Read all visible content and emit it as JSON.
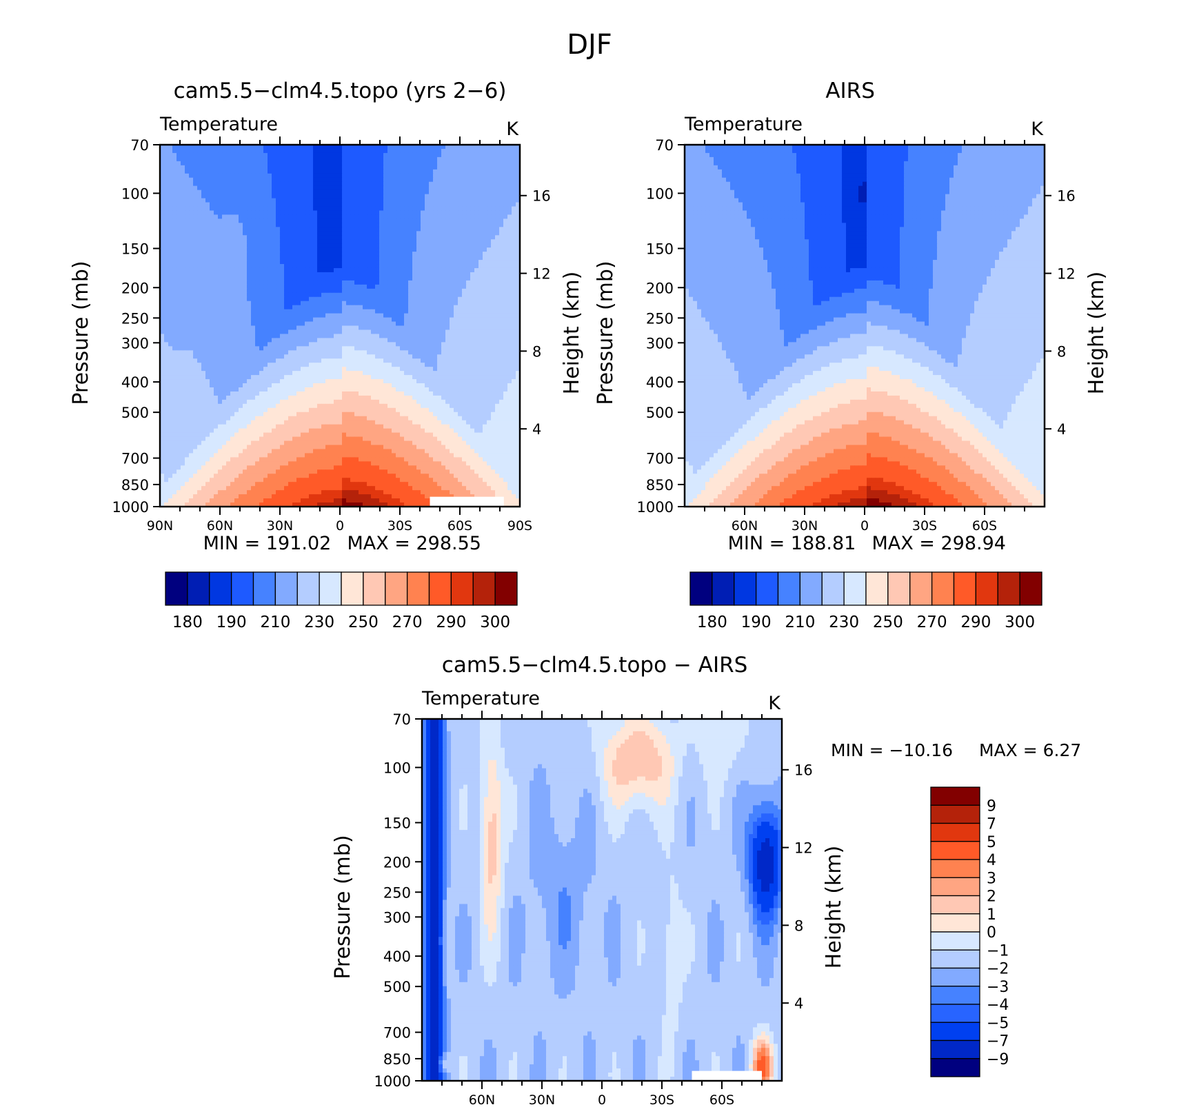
{
  "figure_title": "DJF",
  "colors": {
    "seq": [
      "#00007f",
      "#001eb4",
      "#0037e1",
      "#1e5aff",
      "#4682ff",
      "#82aaff",
      "#b4cdff",
      "#d7e8ff",
      "#ffe6d7",
      "#ffc8b4",
      "#ffa582",
      "#ff8250",
      "#ff5a28",
      "#e1370f",
      "#b4220a",
      "#820000"
    ],
    "diff": [
      "#00007f",
      "#0028c8",
      "#0040f0",
      "#2864ff",
      "#4682ff",
      "#82aaff",
      "#b4cdff",
      "#d7e8ff",
      "#ffe6d7",
      "#ffc8b4",
      "#ffa582",
      "#ff8250",
      "#ff5a28",
      "#e1370f",
      "#b4220a",
      "#820000"
    ]
  },
  "chart_data": [
    {
      "type": "heatmap",
      "title": "cam5.5−clm4.5.topo (yrs 2−6)",
      "variable": "Temperature",
      "units": "K",
      "ylabel": "Pressure (mb)",
      "ylabel_right": "Height (km)",
      "pressure_ticks": [
        "70",
        "100",
        "150",
        "200",
        "250",
        "300",
        "400",
        "500",
        "700",
        "850",
        "1000"
      ],
      "pressure_values": [
        70,
        100,
        150,
        200,
        250,
        300,
        400,
        500,
        700,
        850,
        1000
      ],
      "height_ticks": [
        "4",
        "8",
        "12",
        "16"
      ],
      "height_values": [
        4,
        8,
        12,
        16
      ],
      "lat_ticks": [
        "90N",
        "60N",
        "30N",
        "0",
        "30S",
        "60S",
        "90S"
      ],
      "lat_values": [
        90,
        60,
        30,
        0,
        -30,
        -60,
        -90
      ],
      "xlim": [
        90,
        -90
      ],
      "ylim": [
        1000,
        70
      ],
      "min_label": "MIN = 191.02",
      "max_label": "MAX = 298.55",
      "min": 191.02,
      "max": 298.55,
      "colorbar_labels": [
        "180",
        "190",
        "210",
        "230",
        "250",
        "270",
        "290",
        "300"
      ],
      "contour_levels": [
        180,
        185,
        190,
        200,
        210,
        220,
        230,
        240,
        250,
        260,
        270,
        280,
        290,
        295,
        300
      ]
    },
    {
      "type": "heatmap",
      "title": "AIRS",
      "variable": "Temperature",
      "units": "K",
      "ylabel": "Pressure (mb)",
      "ylabel_right": "Height (km)",
      "pressure_ticks": [
        "70",
        "100",
        "150",
        "200",
        "250",
        "300",
        "400",
        "500",
        "700",
        "850",
        "1000"
      ],
      "pressure_values": [
        70,
        100,
        150,
        200,
        250,
        300,
        400,
        500,
        700,
        850,
        1000
      ],
      "height_ticks": [
        "4",
        "8",
        "12",
        "16"
      ],
      "height_values": [
        4,
        8,
        12,
        16
      ],
      "lat_ticks": [
        "60N",
        "30N",
        "0",
        "30S",
        "60S"
      ],
      "lat_values": [
        60,
        30,
        0,
        -30,
        -60
      ],
      "xlim": [
        90,
        -90
      ],
      "ylim": [
        1000,
        70
      ],
      "min_label": "MIN = 188.81",
      "max_label": "MAX = 298.94",
      "min": 188.81,
      "max": 298.94,
      "colorbar_labels": [
        "180",
        "190",
        "210",
        "230",
        "250",
        "270",
        "290",
        "300"
      ],
      "contour_levels": [
        180,
        185,
        190,
        200,
        210,
        220,
        230,
        240,
        250,
        260,
        270,
        280,
        290,
        295,
        300
      ]
    },
    {
      "type": "heatmap",
      "title": "cam5.5−clm4.5.topo − AIRS",
      "variable": "Temperature",
      "units": "K",
      "ylabel": "Pressure (mb)",
      "ylabel_right": "Height (km)",
      "pressure_ticks": [
        "70",
        "100",
        "150",
        "200",
        "250",
        "300",
        "400",
        "500",
        "700",
        "850",
        "1000"
      ],
      "pressure_values": [
        70,
        100,
        150,
        200,
        250,
        300,
        400,
        500,
        700,
        850,
        1000
      ],
      "height_ticks": [
        "4",
        "8",
        "12",
        "16"
      ],
      "height_values": [
        4,
        8,
        12,
        16
      ],
      "lat_ticks": [
        "60N",
        "30N",
        "0",
        "30S",
        "60S"
      ],
      "lat_values": [
        60,
        30,
        0,
        -30,
        -60
      ],
      "xlim": [
        90,
        -90
      ],
      "ylim": [
        1000,
        70
      ],
      "min_label": "MIN = −10.16",
      "max_label": "MAX = 6.27",
      "min": -10.16,
      "max": 6.27,
      "colorbar_labels": [
        "9",
        "7",
        "5",
        "4",
        "3",
        "2",
        "1",
        "0",
        "−1",
        "−2",
        "−3",
        "−4",
        "−5",
        "−7",
        "−9"
      ],
      "contour_levels": [
        -9,
        -7,
        -5,
        -4,
        -3,
        -2,
        -1,
        0,
        1,
        2,
        3,
        4,
        5,
        7,
        9
      ]
    }
  ]
}
